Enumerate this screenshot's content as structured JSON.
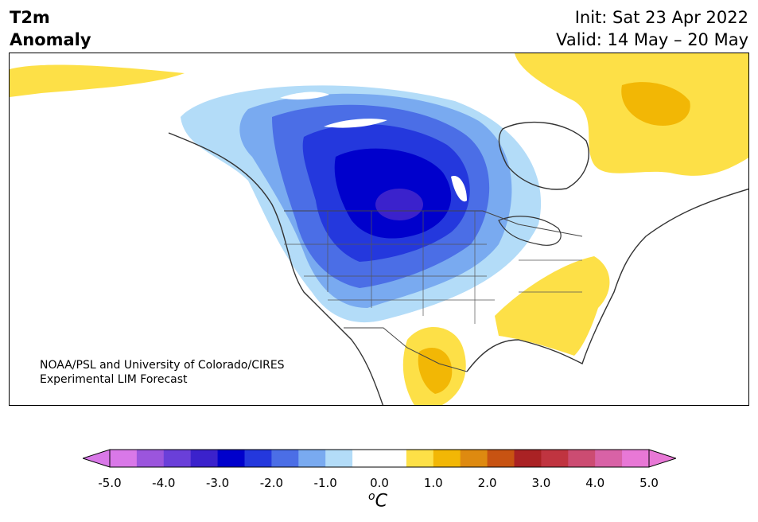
{
  "header": {
    "variable_line1": "T2m",
    "variable_line2": "Anomaly",
    "init": "Init: Sat 23 Apr 2022",
    "valid": "Valid: 14 May – 20 May"
  },
  "map": {
    "credit_line1": "NOAA/PSL and University of Colorado/CIRES",
    "credit_line2": "Experimental LIM Forecast",
    "region": "North America"
  },
  "colorbar": {
    "unit_base": "C",
    "unit_sup": "o",
    "tick_labels": [
      "-5.0",
      "-4.0",
      "-3.0",
      "-2.0",
      "-1.0",
      "0.0",
      "1.0",
      "2.0",
      "3.0",
      "4.0",
      "5.0"
    ],
    "colors": [
      "#d978e8",
      "#9b55dd",
      "#6a3fd9",
      "#3b22cc",
      "#0000cc",
      "#2438dd",
      "#4b6ee6",
      "#79aaf0",
      "#b3dcf8",
      "#ffffff",
      "#ffffff",
      "#fde047",
      "#f2b705",
      "#de8a10",
      "#c85312",
      "#aa2224",
      "#c03440",
      "#cc4c72",
      "#d862a6",
      "#e878d6"
    ],
    "extend_low_color": "#d978e8",
    "extend_high_color": "#e878d6"
  }
}
